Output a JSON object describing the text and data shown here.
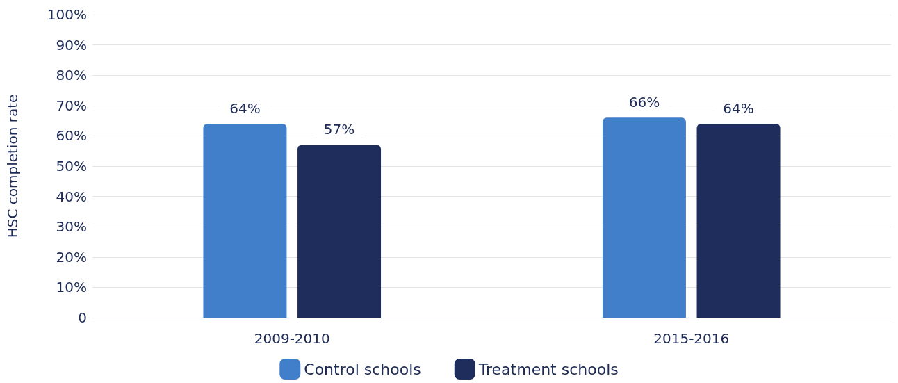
{
  "chart_data": {
    "type": "bar",
    "ylabel": "HSC completion rate",
    "categories": [
      "2009-2010",
      "2015-2016"
    ],
    "series": [
      {
        "name": "Control schools",
        "color": "#417fcb",
        "values": [
          64,
          66
        ],
        "value_labels": [
          "64%",
          "66%"
        ]
      },
      {
        "name": "Treatment schools",
        "color": "#1f2d5c",
        "values": [
          57,
          64
        ],
        "value_labels": [
          "57%",
          "64%"
        ]
      }
    ],
    "ylim": [
      0,
      100
    ],
    "yticks": [
      0,
      {
        "value": 10,
        "label": "10%"
      },
      {
        "value": 20,
        "label": "20%"
      },
      {
        "value": 30,
        "label": "30%"
      },
      {
        "value": 40,
        "label": "40%"
      },
      {
        "value": 50,
        "label": "50%"
      },
      {
        "value": 60,
        "label": "60%"
      },
      {
        "value": 70,
        "label": "70%"
      },
      {
        "value": 80,
        "label": "80%"
      },
      {
        "value": 90,
        "label": "90%"
      },
      {
        "value": 100,
        "label": "100%"
      }
    ],
    "grid": "y",
    "legend": "bottom"
  }
}
